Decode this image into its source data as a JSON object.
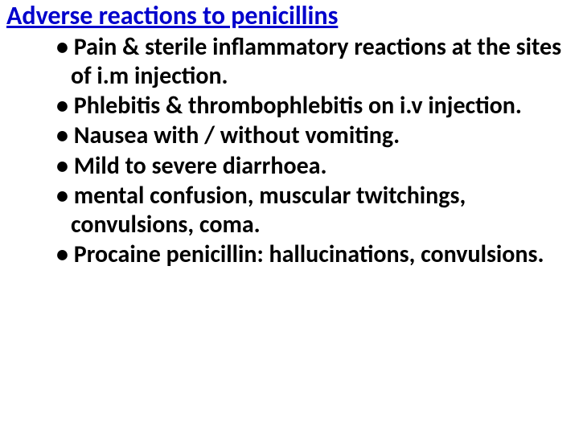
{
  "slide": {
    "title": "Adverse reactions to penicillins",
    "title_color": "#0000cc",
    "title_fontsize": 32,
    "title_underline": true,
    "body_color": "#000000",
    "body_fontsize": 30,
    "body_fontweight": 700,
    "background_color": "#ffffff",
    "bullets": [
      "Pain & sterile inflammatory reactions at the sites of i.m injection.",
      "Phlebitis & thrombophlebitis on i.v injection.",
      "Nausea with / without vomiting.",
      "Mild to severe diarrhoea.",
      "mental confusion, muscular twitchings, convulsions, coma.",
      "Procaine penicillin: hallucinations, convulsions."
    ]
  }
}
